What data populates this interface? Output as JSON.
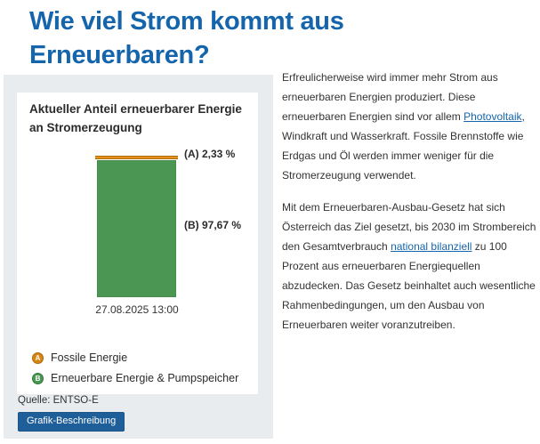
{
  "page_title": "Wie viel Strom kommt aus Erneuerbaren?",
  "colors": {
    "accent_blue": "#1565AC",
    "panel_background": "#E8ECEF",
    "button_background": "#1E5E99",
    "fossil_orange": "#E8901A",
    "renewable_green": "#4C9653",
    "body_text": "#333333"
  },
  "chart_card": {
    "title": "Aktueller Anteil erneuerbarer Energie an Stromerzeugung",
    "source": "Quelle: ENTSO-E",
    "button_label": "Grafik-Beschreibung"
  },
  "chart_data": {
    "type": "bar",
    "stacked": true,
    "title": "Aktueller Anteil erneuerbarer Energie an Stromerzeugung",
    "categories": [
      "27.08.2025 13:00"
    ],
    "series": [
      {
        "key": "A",
        "name": "Fossile Energie",
        "values": [
          2.33
        ],
        "color": "#E8901A",
        "border_color": "#AD6D05",
        "data_label": "(A) 2,33 %"
      },
      {
        "key": "B",
        "name": "Erneuerbare Energie & Pumpspeicher",
        "values": [
          97.67
        ],
        "color": "#4C9653",
        "border_color": "#3D7F43",
        "data_label": "(B) 97,67 %"
      }
    ],
    "unit": "%",
    "ylim": [
      0,
      100
    ],
    "xlabel": "",
    "ylabel": "",
    "grid": false,
    "legend_position": "bottom"
  },
  "legend": {
    "items": [
      {
        "key": "A",
        "label": "Fossile Energie",
        "color": "#D98610",
        "border_color": "#A96A0D"
      },
      {
        "key": "B",
        "label": "Erneuerbare Energie & Pumpspeicher",
        "color": "#4C9653",
        "border_color": "#2F7A38"
      }
    ]
  },
  "article": {
    "paragraphs": [
      {
        "segments": [
          {
            "type": "text",
            "text": "Erfreulicherweise wird immer mehr Strom aus erneuerbaren Energien produziert. Diese erneuerbaren Energien sind vor allem "
          },
          {
            "type": "link",
            "text": "Photovoltaik"
          },
          {
            "type": "text",
            "text": ", Windkraft und Wasserkraft. Fossile Brennstoffe wie Erdgas und Öl werden immer weniger für die Stromerzeugung verwendet."
          }
        ]
      },
      {
        "segments": [
          {
            "type": "text",
            "text": "Mit dem Erneuerbaren-Ausbau-Gesetz hat sich Österreich das Ziel gesetzt, bis 2030 im Strombereich den Gesamtverbrauch "
          },
          {
            "type": "link",
            "text": "national bilanziell"
          },
          {
            "type": "text",
            "text": " zu 100 Prozent aus erneuerbaren Energiequellen abzudecken. Das Gesetz beinhaltet auch wesentliche Rahmenbedingungen, um den Ausbau von Erneuerbaren weiter voranzutreiben."
          }
        ]
      }
    ]
  }
}
